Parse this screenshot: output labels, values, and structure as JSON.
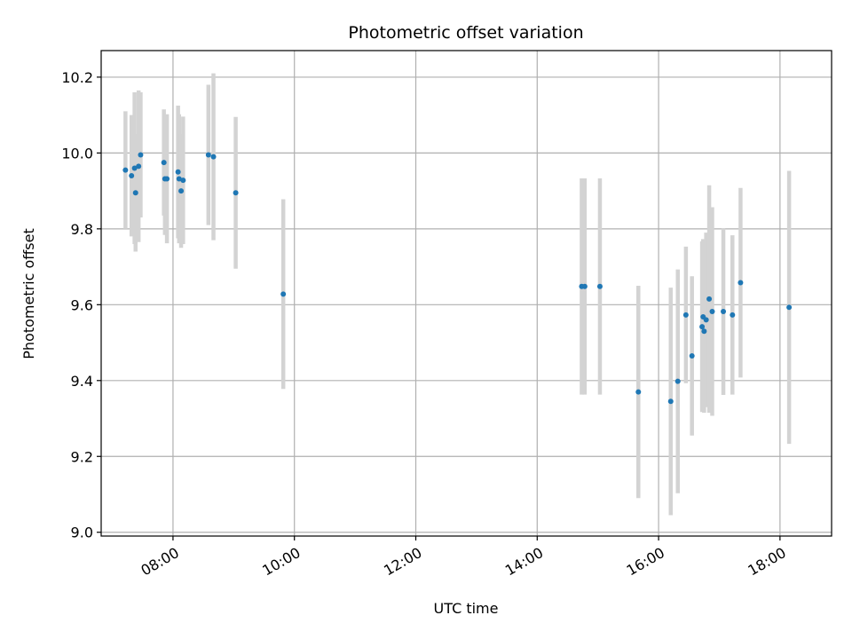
{
  "chart_data": {
    "type": "scatter",
    "title": "Photometric offset variation",
    "xlabel": "UTC time",
    "ylabel": "Photometric offset",
    "x_axis_type": "time",
    "xlim": [
      "06:49",
      "18:51"
    ],
    "ylim": [
      8.99,
      10.27
    ],
    "x_ticks": [
      "08:00",
      "10:00",
      "12:00",
      "14:00",
      "16:00",
      "18:00"
    ],
    "y_ticks": [
      9.0,
      9.2,
      9.4,
      9.6,
      9.8,
      10.0,
      10.2
    ],
    "y_tick_labels": [
      "9.0",
      "9.2",
      "9.4",
      "9.6",
      "9.8",
      "10.0",
      "10.2"
    ],
    "grid": true,
    "errorbar_color": "#d3d3d3",
    "point_color": "#1f77b4",
    "points": [
      {
        "x": "07:13",
        "y": 9.955,
        "err": 0.155
      },
      {
        "x": "07:19",
        "y": 9.94,
        "err": 0.16
      },
      {
        "x": "07:22",
        "y": 9.96,
        "err": 0.2
      },
      {
        "x": "07:23",
        "y": 9.895,
        "err": 0.155
      },
      {
        "x": "07:26",
        "y": 9.965,
        "err": 0.2
      },
      {
        "x": "07:28",
        "y": 9.995,
        "err": 0.165
      },
      {
        "x": "07:51",
        "y": 9.975,
        "err": 0.14
      },
      {
        "x": "07:52",
        "y": 9.932,
        "err": 0.148
      },
      {
        "x": "07:54",
        "y": 9.932,
        "err": 0.17
      },
      {
        "x": "08:05",
        "y": 9.95,
        "err": 0.175
      },
      {
        "x": "08:06",
        "y": 9.932,
        "err": 0.17
      },
      {
        "x": "08:08",
        "y": 9.9,
        "err": 0.15
      },
      {
        "x": "08:10",
        "y": 9.928,
        "err": 0.168
      },
      {
        "x": "08:35",
        "y": 9.995,
        "err": 0.185
      },
      {
        "x": "08:40",
        "y": 9.99,
        "err": 0.22
      },
      {
        "x": "09:02",
        "y": 9.895,
        "err": 0.2
      },
      {
        "x": "09:49",
        "y": 9.628,
        "err": 0.25
      },
      {
        "x": "14:44",
        "y": 9.648,
        "err": 0.285
      },
      {
        "x": "14:47",
        "y": 9.648,
        "err": 0.285
      },
      {
        "x": "15:02",
        "y": 9.648,
        "err": 0.285
      },
      {
        "x": "15:40",
        "y": 9.37,
        "err": 0.28
      },
      {
        "x": "16:12",
        "y": 9.345,
        "err": 0.3
      },
      {
        "x": "16:19",
        "y": 9.398,
        "err": 0.295
      },
      {
        "x": "16:27",
        "y": 9.573,
        "err": 0.18
      },
      {
        "x": "16:33",
        "y": 9.465,
        "err": 0.21
      },
      {
        "x": "16:43",
        "y": 9.542,
        "err": 0.225
      },
      {
        "x": "16:44",
        "y": 9.568,
        "err": 0.205
      },
      {
        "x": "16:45",
        "y": 9.53,
        "err": 0.215
      },
      {
        "x": "16:47",
        "y": 9.56,
        "err": 0.23
      },
      {
        "x": "16:50",
        "y": 9.615,
        "err": 0.3
      },
      {
        "x": "16:53",
        "y": 9.582,
        "err": 0.275
      },
      {
        "x": "17:04",
        "y": 9.582,
        "err": 0.22
      },
      {
        "x": "17:13",
        "y": 9.573,
        "err": 0.21
      },
      {
        "x": "17:21",
        "y": 9.658,
        "err": 0.25
      },
      {
        "x": "18:09",
        "y": 9.593,
        "err": 0.36
      }
    ]
  }
}
